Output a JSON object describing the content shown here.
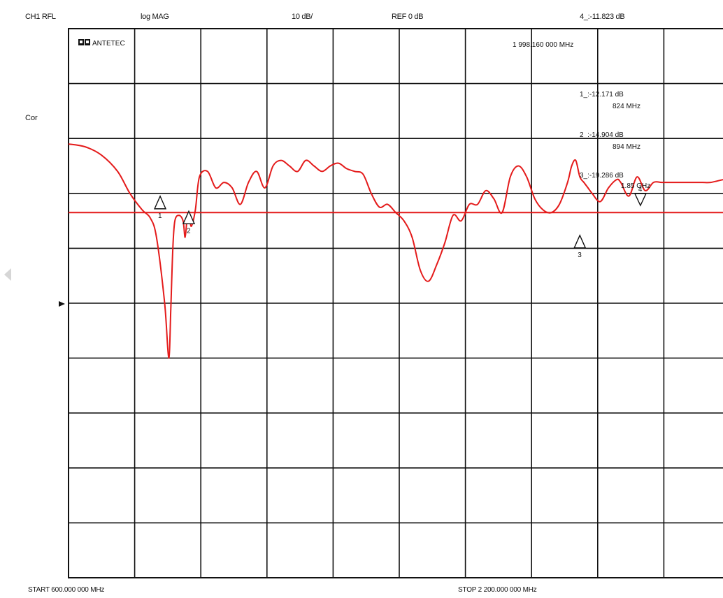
{
  "header": {
    "channel": "CH1 RFL",
    "format": "log MAG",
    "scale": "10 dB/",
    "ref": "REF 0 dB",
    "active_marker": "4_:-11.823 dB"
  },
  "side": {
    "cor": "Cor"
  },
  "brand": {
    "text": "ANTETEC"
  },
  "active_marker_freq": "1 998.160 000 MHz",
  "marker_readouts": [
    {
      "val": "1_:-12.171 dB",
      "freq": "824 MHz"
    },
    {
      "val": "2_:-14.904 dB",
      "freq": "894 MHz"
    },
    {
      "val": "3_:-19.286 dB",
      "freq": "1.85 GHz"
    }
  ],
  "footer": {
    "start": "START 600.000 000 MHz",
    "stop": "STOP 2 200.000 000 MHz"
  },
  "colors": {
    "trace": "#e41b1b",
    "grid": "#111111",
    "nav_arrow": "#d6d6d6"
  },
  "icons": {
    "logo": "antetec-logo-icon",
    "ref_pointer": "ref-level-triangle-icon",
    "nav": "left-arrow-icon"
  },
  "chart_data": {
    "type": "line",
    "title": "",
    "xlabel": "",
    "ylabel": "",
    "x_unit": "MHz",
    "y_unit": "dB",
    "xlim": [
      600,
      2200
    ],
    "ylim": [
      -80,
      20
    ],
    "ref_level": 0,
    "grid": true,
    "limit_line": -13.5,
    "series": [
      {
        "x": [
          600,
          640,
          680,
          720,
          750,
          780,
          800,
          815,
          835,
          845,
          850,
          855,
          860,
          870,
          880,
          885,
          890,
          895,
          900,
          910,
          920,
          940,
          960,
          980,
          1000,
          1020,
          1040,
          1060,
          1080,
          1100,
          1120,
          1140,
          1160,
          1180,
          1200,
          1220,
          1240,
          1260,
          1280,
          1300,
          1320,
          1340,
          1360,
          1380,
          1400,
          1420,
          1440,
          1460,
          1480,
          1500,
          1520,
          1540,
          1560,
          1580,
          1600,
          1620,
          1640,
          1660,
          1680,
          1700,
          1720,
          1740,
          1760,
          1780,
          1800,
          1820,
          1830,
          1840,
          1850,
          1860,
          1870,
          1880,
          1900,
          1920,
          1940,
          1950,
          1970,
          1990,
          2010,
          2030,
          2050,
          2070,
          2090,
          2110,
          2130,
          2150,
          2170,
          2200
        ],
        "y": [
          -1,
          -1.5,
          -3,
          -6,
          -10,
          -13,
          -14.5,
          -18,
          -30,
          -40,
          -31,
          -20,
          -15,
          -14,
          -15,
          -18,
          -14.5,
          -13.5,
          -16,
          -13,
          -7,
          -6,
          -9,
          -8,
          -9,
          -12,
          -8,
          -6,
          -9,
          -5,
          -4,
          -5,
          -6,
          -4,
          -5,
          -6,
          -5,
          -4.5,
          -5.5,
          -6,
          -6.5,
          -10,
          -12.5,
          -12,
          -13.5,
          -15,
          -18,
          -24,
          -26,
          -23,
          -19,
          -14,
          -15,
          -12,
          -12,
          -9.5,
          -11,
          -13.5,
          -7,
          -5,
          -7,
          -11,
          -13,
          -13.5,
          -12,
          -8,
          -5,
          -4,
          -7,
          -8,
          -9,
          -10,
          -11.5,
          -9,
          -7.5,
          -8,
          -10.5,
          -7,
          -9.5,
          -8,
          -8,
          -8,
          -8,
          -8,
          -8,
          -8,
          -8,
          -7.5
        ]
      }
    ],
    "markers": [
      {
        "label": "1",
        "x": 824,
        "y": -12.171
      },
      {
        "label": "2",
        "x": 894,
        "y": -14.904
      },
      {
        "label": "3",
        "x": 1850,
        "y": -19.286
      },
      {
        "label": "4",
        "x": 1998.16,
        "y": -11.823
      }
    ]
  }
}
